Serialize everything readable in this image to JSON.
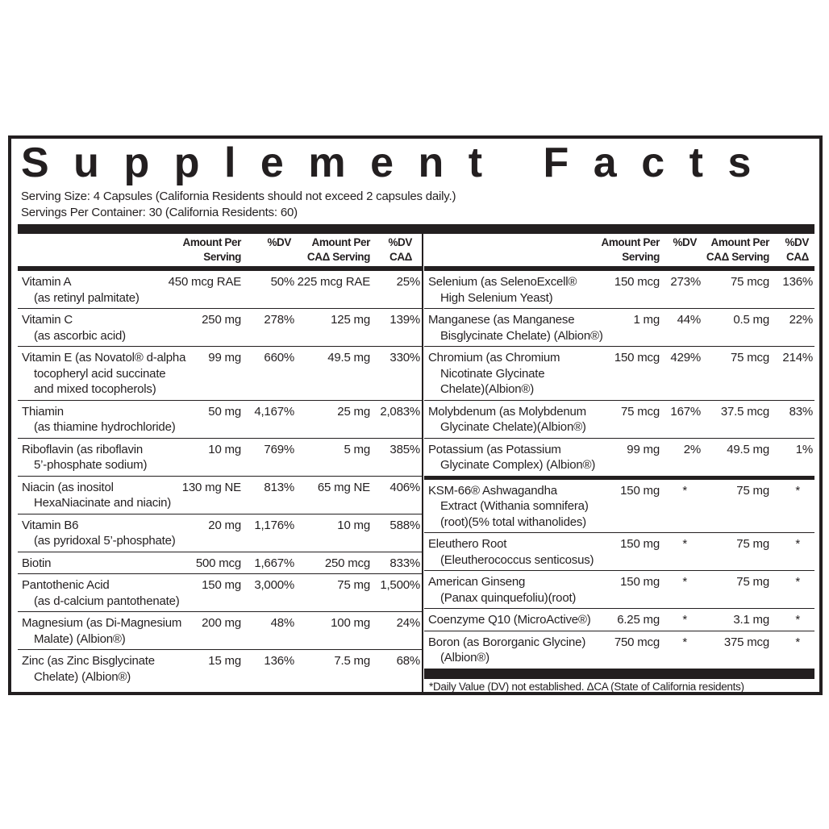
{
  "title": "Supplement Facts",
  "serving_size": "Serving Size: 4 Capsules (California Residents should not exceed 2 capsules daily.)",
  "servings_per_container": "Servings Per Container: 30 (California Residents: 60)",
  "headers": [
    [
      "Amount Per",
      "Serving"
    ],
    [
      "%DV"
    ],
    [
      "Amount Per",
      "CAΔ Serving"
    ],
    [
      "%DV",
      "CAΔ"
    ]
  ],
  "left_table": {
    "rows": [
      {
        "name": [
          "Vitamin A",
          "(as retinyl palmitate)"
        ],
        "amount": "450 mcg RAE",
        "dv": "50%",
        "ca_amount": "225 mcg RAE",
        "ca_dv": "25%"
      },
      {
        "name": [
          "Vitamin C",
          "(as ascorbic acid)"
        ],
        "amount": "250 mg",
        "dv": "278%",
        "ca_amount": "125 mg",
        "ca_dv": "139%"
      },
      {
        "name": [
          "Vitamin E (as Novatol® d-alpha",
          "tocopheryl acid succinate",
          "and mixed tocopherols)"
        ],
        "amount": "99 mg",
        "dv": "660%",
        "ca_amount": "49.5 mg",
        "ca_dv": "330%"
      },
      {
        "name": [
          "Thiamin",
          "(as thiamine hydrochloride)"
        ],
        "amount": "50 mg",
        "dv": "4,167%",
        "ca_amount": "25 mg",
        "ca_dv": "2,083%"
      },
      {
        "name": [
          "Riboflavin (as riboflavin",
          "5’-phosphate sodium)"
        ],
        "amount": "10 mg",
        "dv": "769%",
        "ca_amount": "5 mg",
        "ca_dv": "385%"
      },
      {
        "name": [
          "Niacin (as inositol",
          "HexaNiacinate and niacin)"
        ],
        "amount": "130 mg NE",
        "dv": "813%",
        "ca_amount": "65 mg NE",
        "ca_dv": "406%"
      },
      {
        "name": [
          "Vitamin B6",
          "(as pyridoxal 5’-phosphate)"
        ],
        "amount": "20 mg",
        "dv": "1,176%",
        "ca_amount": "10 mg",
        "ca_dv": "588%"
      },
      {
        "name": [
          "Biotin"
        ],
        "amount": "500 mcg",
        "dv": "1,667%",
        "ca_amount": "250 mcg",
        "ca_dv": "833%"
      },
      {
        "name": [
          "Pantothenic Acid",
          "(as d-calcium pantothenate)"
        ],
        "amount": "150 mg",
        "dv": "3,000%",
        "ca_amount": "75 mg",
        "ca_dv": "1,500%"
      },
      {
        "name": [
          "Magnesium (as Di-Magnesium",
          "Malate) (Albion®)"
        ],
        "amount": "200 mg",
        "dv": "48%",
        "ca_amount": "100 mg",
        "ca_dv": "24%"
      },
      {
        "name": [
          "Zinc (as Zinc Bisglycinate",
          "Chelate) (Albion®)"
        ],
        "amount": "15 mg",
        "dv": "136%",
        "ca_amount": "7.5 mg",
        "ca_dv": "68%"
      }
    ]
  },
  "right_table": {
    "minerals": [
      {
        "name": [
          "Selenium (as SelenoExcell®",
          "High Selenium Yeast)"
        ],
        "amount": "150 mcg",
        "dv": "273%",
        "ca_amount": "75 mcg",
        "ca_dv": "136%"
      },
      {
        "name": [
          "Manganese (as Manganese",
          "Bisglycinate Chelate) (Albion®)"
        ],
        "amount": "1 mg",
        "dv": "44%",
        "ca_amount": "0.5 mg",
        "ca_dv": "22%"
      },
      {
        "name": [
          "Chromium (as Chromium",
          "Nicotinate Glycinate",
          "Chelate)(Albion®)"
        ],
        "amount": "150 mcg",
        "dv": "429%",
        "ca_amount": "75 mcg",
        "ca_dv": "214%"
      },
      {
        "name": [
          "Molybdenum (as Molybdenum",
          "Glycinate Chelate)(Albion®)"
        ],
        "amount": "75 mcg",
        "dv": "167%",
        "ca_amount": "37.5 mcg",
        "ca_dv": "83%"
      },
      {
        "name": [
          "Potassium (as Potassium",
          "Glycinate Complex) (Albion®)"
        ],
        "amount": "99 mg",
        "dv": "2%",
        "ca_amount": "49.5 mg",
        "ca_dv": "1%"
      }
    ],
    "botanicals": [
      {
        "name": [
          "KSM-66® Ashwagandha",
          "Extract (Withania somnifera)",
          "(root)(5% total withanolides)"
        ],
        "amount": "150 mg",
        "dv": "*",
        "ca_amount": "75 mg",
        "ca_dv": "*"
      },
      {
        "name": [
          "Eleuthero Root",
          "(Eleutherococcus senticosus)"
        ],
        "amount": "150 mg",
        "dv": "*",
        "ca_amount": "75 mg",
        "ca_dv": "*"
      },
      {
        "name": [
          "American Ginseng",
          "(Panax quinquefoliu)(root)"
        ],
        "amount": "150 mg",
        "dv": "*",
        "ca_amount": "75 mg",
        "ca_dv": "*"
      },
      {
        "name": [
          "Coenzyme Q10 (MicroActive®)"
        ],
        "amount": "6.25 mg",
        "dv": "*",
        "ca_amount": "3.1 mg",
        "ca_dv": "*"
      },
      {
        "name": [
          "Boron (as Bororganic Glycine)",
          "(Albion®)"
        ],
        "amount": "750 mcg",
        "dv": "*",
        "ca_amount": "375 mcg",
        "ca_dv": "*"
      }
    ],
    "footnote": "*Daily Value (DV) not established. ΔCA (State of California residents)"
  }
}
